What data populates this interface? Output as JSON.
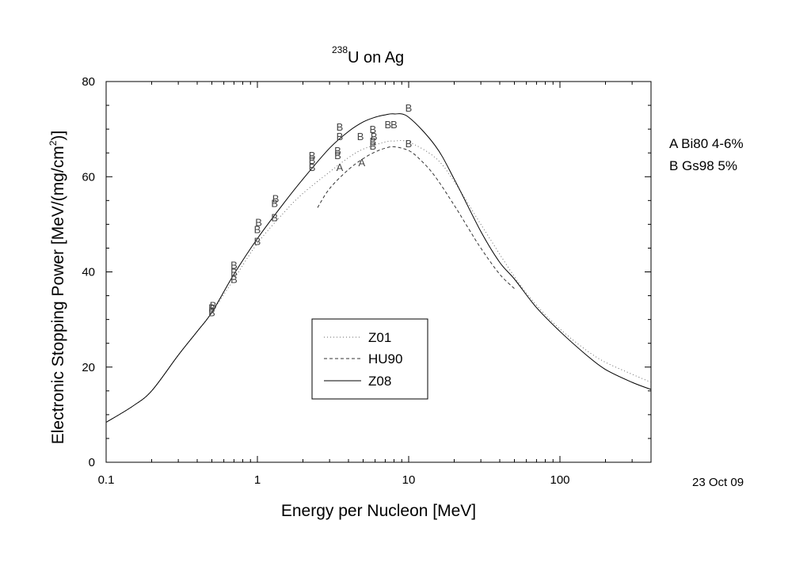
{
  "chart_data": {
    "type": "line",
    "title": {
      "superscript": "238",
      "main": "U on Ag"
    },
    "xlabel": "Energy per Nucleon [MeV]",
    "ylabel": {
      "main": "Electronic Stopping Power [MeV/(mg/cm",
      "superscript": "2",
      "end": ")]"
    },
    "x_scale": "log",
    "xlim": [
      0.1,
      400
    ],
    "ylim": [
      0,
      80
    ],
    "x_ticks": [
      {
        "value": 0.1,
        "label": "0.1"
      },
      {
        "value": 1,
        "label": "1"
      },
      {
        "value": 10,
        "label": "10"
      },
      {
        "value": 100,
        "label": "100"
      }
    ],
    "y_ticks": [
      {
        "value": 0,
        "label": "0"
      },
      {
        "value": 20,
        "label": "20"
      },
      {
        "value": 40,
        "label": "40"
      },
      {
        "value": 60,
        "label": "60"
      },
      {
        "value": 80,
        "label": "80"
      }
    ],
    "grid": false,
    "legend_position": "lower-center",
    "series": [
      {
        "name": "Z01",
        "style": "dotted",
        "x": [
          0.1,
          0.15,
          0.2,
          0.3,
          0.4,
          0.5,
          0.7,
          1.0,
          1.5,
          2.0,
          3.0,
          4.0,
          5.0,
          7.0,
          8.0,
          10,
          15,
          20,
          30,
          50,
          70,
          100,
          150,
          200,
          300,
          400
        ],
        "y": [
          8.4,
          11.8,
          15.0,
          22.5,
          27.5,
          31.5,
          38.5,
          46.0,
          52.5,
          56.5,
          61.0,
          64.0,
          65.8,
          67.3,
          67.5,
          67.3,
          64.0,
          59.0,
          50.0,
          39.0,
          33.0,
          28.0,
          23.5,
          21.0,
          18.5,
          16.8
        ]
      },
      {
        "name": "HU90",
        "style": "dashed",
        "x": [
          2.5,
          3.0,
          4.0,
          5.0,
          6.0,
          7.0,
          8.0,
          10,
          12,
          15,
          20,
          25,
          30,
          40,
          50
        ],
        "y": [
          53.5,
          57.5,
          61.5,
          63.8,
          65.2,
          66.0,
          66.3,
          65.5,
          63.5,
          60.0,
          54.0,
          49.0,
          45.0,
          39.5,
          36.5
        ]
      },
      {
        "name": "Z08",
        "style": "solid",
        "x": [
          0.1,
          0.15,
          0.2,
          0.3,
          0.4,
          0.5,
          0.7,
          1.0,
          1.5,
          2.0,
          3.0,
          4.0,
          5.0,
          6.0,
          7.0,
          8.0,
          10,
          15,
          20,
          30,
          40,
          50,
          70,
          100,
          150,
          200,
          300,
          400
        ],
        "y": [
          8.4,
          11.8,
          15.0,
          22.5,
          27.5,
          31.5,
          39.5,
          47.0,
          54.5,
          59.5,
          66.0,
          69.5,
          71.5,
          72.5,
          73.0,
          73.2,
          72.5,
          66.5,
          59.5,
          48.5,
          42.0,
          38.5,
          32.5,
          27.5,
          22.5,
          19.5,
          16.8,
          15.3
        ]
      }
    ],
    "points": [
      {
        "x": 0.5,
        "y": 32.5,
        "label": "B"
      },
      {
        "x": 0.5,
        "y": 31.5,
        "label": "B"
      },
      {
        "x": 0.51,
        "y": 33.0,
        "label": "B"
      },
      {
        "x": 0.7,
        "y": 38.5,
        "label": "B"
      },
      {
        "x": 0.7,
        "y": 40.0,
        "label": "B"
      },
      {
        "x": 0.7,
        "y": 41.5,
        "label": "B"
      },
      {
        "x": 1.0,
        "y": 46.5,
        "label": "B"
      },
      {
        "x": 1.0,
        "y": 49.0,
        "label": "B"
      },
      {
        "x": 1.02,
        "y": 50.5,
        "label": "B"
      },
      {
        "x": 1.3,
        "y": 51.5,
        "label": "B"
      },
      {
        "x": 1.3,
        "y": 54.5,
        "label": "B"
      },
      {
        "x": 1.32,
        "y": 55.5,
        "label": "B"
      },
      {
        "x": 2.3,
        "y": 62.0,
        "label": "B"
      },
      {
        "x": 2.3,
        "y": 63.5,
        "label": "B"
      },
      {
        "x": 2.3,
        "y": 64.5,
        "label": "B"
      },
      {
        "x": 3.4,
        "y": 64.5,
        "label": "B"
      },
      {
        "x": 3.4,
        "y": 65.5,
        "label": "B"
      },
      {
        "x": 3.5,
        "y": 68.5,
        "label": "B"
      },
      {
        "x": 3.5,
        "y": 70.5,
        "label": "B"
      },
      {
        "x": 3.5,
        "y": 62.0,
        "label": "A"
      },
      {
        "x": 4.8,
        "y": 68.5,
        "label": "B"
      },
      {
        "x": 4.9,
        "y": 63.0,
        "label": "A"
      },
      {
        "x": 5.8,
        "y": 66.5,
        "label": "B"
      },
      {
        "x": 5.8,
        "y": 67.5,
        "label": "B"
      },
      {
        "x": 5.9,
        "y": 68.5,
        "label": "B"
      },
      {
        "x": 5.8,
        "y": 70.0,
        "label": "B"
      },
      {
        "x": 7.3,
        "y": 71.0,
        "label": "B"
      },
      {
        "x": 8.0,
        "y": 71.0,
        "label": "B"
      },
      {
        "x": 10.0,
        "y": 67.0,
        "label": "B"
      },
      {
        "x": 10.0,
        "y": 74.5,
        "label": "B"
      }
    ],
    "annotations": [
      "A Bi80 4-6%",
      "B Gs98 5%"
    ],
    "date": "23 Oct 09"
  }
}
